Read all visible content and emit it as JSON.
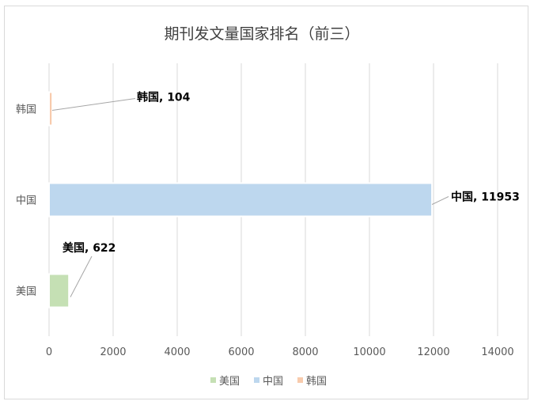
{
  "chart_data": {
    "type": "bar",
    "orientation": "horizontal",
    "title": "期刊发文量国家排名（前三）",
    "categories": [
      "美国",
      "中国",
      "韩国"
    ],
    "values": [
      622,
      11953,
      104
    ],
    "colors": [
      "#c5e0b4",
      "#bdd7ee",
      "#f8cbad"
    ],
    "data_labels": [
      "美国, 622",
      "中国, 11953",
      "韩国, 104"
    ],
    "xlim": [
      0,
      14000
    ],
    "x_ticks": [
      "0",
      "2000",
      "4000",
      "6000",
      "8000",
      "10000",
      "12000",
      "14000"
    ],
    "grid": true,
    "legend": {
      "position": "bottom",
      "entries": [
        "美国",
        "中国",
        "韩国"
      ]
    }
  }
}
